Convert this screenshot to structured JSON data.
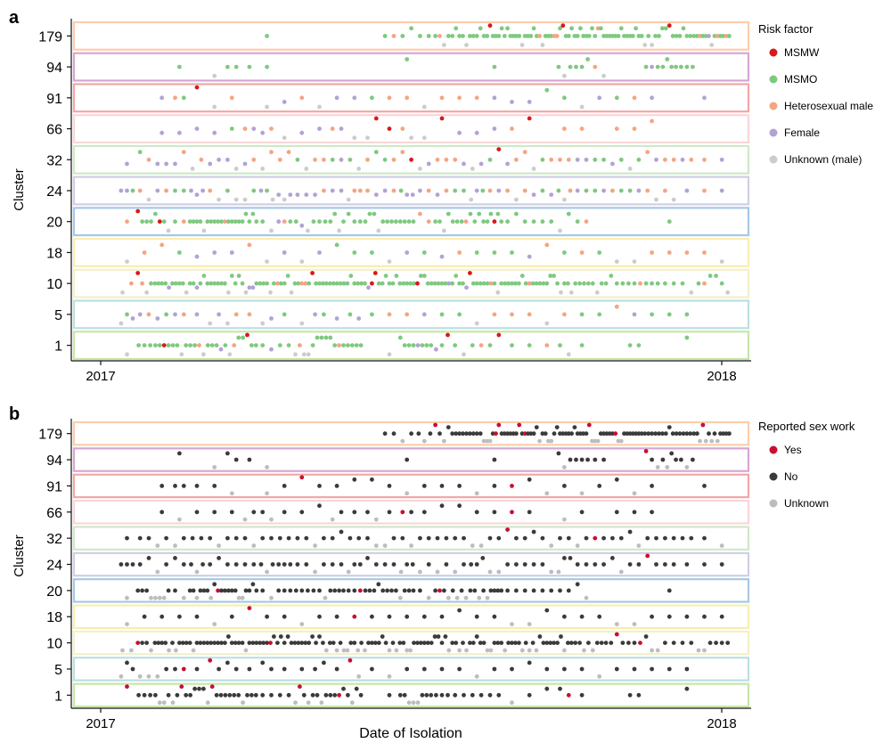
{
  "chart_data": [
    {
      "panel_label": "a",
      "type": "scatter",
      "xlabel": "",
      "ylabel": "Cluster",
      "x_ticks": [
        "2017",
        "2018"
      ],
      "xlim": [
        "2017-01-01",
        "2018-01-01"
      ],
      "categories": [
        "179",
        "94",
        "91",
        "66",
        "32",
        "24",
        "20",
        "18",
        "10",
        "5",
        "1"
      ],
      "legend_title": "Risk factor",
      "legend_position": "right",
      "series": [
        {
          "name": "MSMW",
          "color": "#d7191c"
        },
        {
          "name": "MSMO",
          "color": "#7fc97f"
        },
        {
          "name": "Heterosexual male",
          "color": "#f4a582"
        },
        {
          "name": "Female",
          "color": "#b2a2d6"
        },
        {
          "name": "Unknown (male)",
          "color": "#cccccc"
        }
      ],
      "density": {
        "179": [
          0,
          0,
          0,
          0,
          0,
          0,
          0,
          0,
          0,
          1,
          0,
          0,
          0,
          0,
          0,
          0,
          2,
          2,
          2,
          4,
          5,
          5,
          6,
          6,
          6,
          6,
          6,
          6,
          6,
          6,
          6,
          5,
          5,
          5,
          6,
          6
        ],
        "94": [
          0,
          0,
          0,
          0,
          1,
          0,
          1,
          2,
          1,
          1,
          0,
          0,
          0,
          0,
          0,
          0,
          0,
          1,
          0,
          0,
          0,
          0,
          1,
          0,
          0,
          0,
          3,
          3,
          2,
          0,
          0,
          3,
          4,
          3,
          0,
          0
        ],
        "91": [
          0,
          0,
          0,
          1,
          2,
          1,
          1,
          1,
          0,
          1,
          1,
          1,
          1,
          1,
          1,
          1,
          1,
          1,
          1,
          1,
          1,
          1,
          1,
          1,
          1,
          1,
          1,
          1,
          1,
          1,
          1,
          1,
          0,
          0,
          1,
          0
        ],
        "66": [
          0,
          0,
          0,
          1,
          1,
          1,
          1,
          1,
          2,
          2,
          1,
          1,
          1,
          2,
          1,
          2,
          1,
          2,
          1,
          1,
          1,
          1,
          1,
          1,
          1,
          0,
          1,
          1,
          0,
          1,
          1,
          1,
          0,
          0,
          0,
          0
        ],
        "32": [
          0,
          1,
          2,
          2,
          2,
          2,
          2,
          2,
          2,
          2,
          2,
          2,
          2,
          2,
          2,
          2,
          2,
          2,
          2,
          2,
          2,
          2,
          2,
          2,
          2,
          2,
          2,
          2,
          2,
          2,
          2,
          2,
          2,
          2,
          1,
          1
        ],
        "24": [
          0,
          3,
          2,
          2,
          2,
          3,
          2,
          2,
          2,
          3,
          3,
          2,
          2,
          2,
          3,
          2,
          2,
          3,
          2,
          2,
          2,
          3,
          2,
          2,
          2,
          2,
          3,
          2,
          2,
          2,
          2,
          2,
          2,
          1,
          1,
          1
        ],
        "20": [
          0,
          1,
          4,
          4,
          2,
          5,
          5,
          5,
          5,
          2,
          3,
          3,
          3,
          4,
          3,
          4,
          4,
          4,
          2,
          4,
          4,
          4,
          5,
          2,
          2,
          2,
          2,
          2,
          0,
          0,
          0,
          0,
          1,
          0,
          0,
          0
        ],
        "18": [
          0,
          1,
          1,
          1,
          1,
          1,
          1,
          1,
          1,
          1,
          1,
          1,
          1,
          1,
          1,
          1,
          1,
          1,
          1,
          1,
          1,
          1,
          1,
          1,
          1,
          1,
          1,
          1,
          1,
          1,
          1,
          1,
          1,
          1,
          1,
          1
        ],
        "10": [
          0,
          2,
          4,
          5,
          5,
          5,
          5,
          5,
          5,
          5,
          5,
          5,
          5,
          5,
          5,
          5,
          5,
          5,
          5,
          5,
          5,
          5,
          5,
          5,
          5,
          5,
          5,
          4,
          4,
          3,
          3,
          3,
          2,
          2,
          3,
          3
        ],
        "5": [
          0,
          3,
          2,
          2,
          2,
          1,
          2,
          2,
          1,
          2,
          1,
          1,
          2,
          1,
          2,
          1,
          1,
          1,
          1,
          1,
          1,
          1,
          1,
          1,
          1,
          1,
          1,
          1,
          1,
          1,
          1,
          1,
          1,
          1,
          0,
          0
        ],
        "1": [
          0,
          1,
          3,
          4,
          4,
          4,
          4,
          4,
          4,
          2,
          2,
          4,
          4,
          4,
          4,
          0,
          1,
          4,
          4,
          3,
          2,
          2,
          2,
          1,
          1,
          1,
          2,
          1,
          0,
          0,
          2,
          0,
          0,
          1,
          0,
          0
        ]
      }
    },
    {
      "panel_label": "b",
      "type": "scatter",
      "xlabel": "Date of Isolation",
      "ylabel": "Cluster",
      "x_ticks": [
        "2017",
        "2018"
      ],
      "xlim": [
        "2017-01-01",
        "2018-01-01"
      ],
      "categories": [
        "179",
        "94",
        "91",
        "66",
        "32",
        "24",
        "20",
        "18",
        "10",
        "5",
        "1"
      ],
      "legend_title": "Reported sex work",
      "legend_position": "right",
      "series": [
        {
          "name": "Yes",
          "color": "#c8102e"
        },
        {
          "name": "No",
          "color": "#3a3a3a"
        },
        {
          "name": "Unknown",
          "color": "#bdbdbd"
        }
      ],
      "density": {
        "179": [
          0,
          0,
          0,
          0,
          0,
          0,
          0,
          0,
          0,
          0,
          0,
          0,
          0,
          0,
          0,
          0,
          2,
          2,
          3,
          4,
          5,
          5,
          6,
          6,
          6,
          6,
          6,
          6,
          6,
          6,
          6,
          5,
          5,
          5,
          6,
          6
        ],
        "94": [
          0,
          0,
          0,
          0,
          1,
          0,
          1,
          2,
          1,
          1,
          0,
          0,
          0,
          0,
          0,
          0,
          0,
          1,
          0,
          0,
          0,
          0,
          1,
          0,
          0,
          0,
          3,
          3,
          2,
          0,
          0,
          3,
          4,
          3,
          0,
          0
        ],
        "91": [
          0,
          0,
          0,
          1,
          2,
          1,
          1,
          1,
          0,
          1,
          1,
          1,
          1,
          1,
          1,
          1,
          1,
          1,
          1,
          1,
          1,
          1,
          1,
          1,
          1,
          1,
          1,
          1,
          1,
          1,
          1,
          1,
          0,
          0,
          1,
          0
        ],
        "66": [
          0,
          0,
          0,
          1,
          1,
          1,
          1,
          1,
          2,
          2,
          1,
          1,
          1,
          2,
          1,
          2,
          1,
          2,
          1,
          1,
          1,
          1,
          1,
          1,
          1,
          0,
          1,
          1,
          0,
          1,
          1,
          1,
          0,
          0,
          0,
          0
        ],
        "32": [
          0,
          1,
          2,
          2,
          2,
          2,
          2,
          2,
          2,
          2,
          2,
          2,
          2,
          2,
          2,
          2,
          2,
          2,
          2,
          2,
          2,
          2,
          2,
          2,
          2,
          2,
          2,
          2,
          2,
          2,
          2,
          2,
          2,
          2,
          1,
          1
        ],
        "24": [
          0,
          3,
          2,
          2,
          2,
          3,
          2,
          2,
          2,
          3,
          3,
          2,
          2,
          2,
          3,
          2,
          2,
          3,
          2,
          2,
          2,
          3,
          2,
          2,
          2,
          2,
          3,
          2,
          2,
          2,
          2,
          2,
          2,
          1,
          1,
          1
        ],
        "20": [
          0,
          1,
          4,
          4,
          2,
          5,
          5,
          5,
          5,
          2,
          3,
          3,
          3,
          4,
          3,
          4,
          4,
          4,
          2,
          4,
          4,
          4,
          5,
          2,
          2,
          2,
          2,
          2,
          0,
          0,
          0,
          0,
          1,
          0,
          0,
          0
        ],
        "18": [
          0,
          1,
          1,
          1,
          1,
          1,
          1,
          1,
          1,
          1,
          1,
          1,
          1,
          1,
          1,
          1,
          1,
          1,
          1,
          1,
          1,
          1,
          1,
          1,
          1,
          1,
          1,
          1,
          1,
          1,
          1,
          1,
          1,
          1,
          1,
          1
        ],
        "10": [
          0,
          2,
          4,
          5,
          5,
          5,
          5,
          5,
          5,
          5,
          5,
          5,
          5,
          5,
          5,
          5,
          5,
          5,
          5,
          5,
          5,
          5,
          5,
          5,
          5,
          5,
          5,
          4,
          4,
          3,
          3,
          3,
          2,
          2,
          3,
          3
        ],
        "5": [
          0,
          3,
          2,
          2,
          2,
          1,
          2,
          2,
          1,
          2,
          1,
          1,
          2,
          1,
          2,
          1,
          1,
          1,
          1,
          1,
          1,
          1,
          1,
          1,
          1,
          1,
          1,
          1,
          1,
          1,
          1,
          1,
          1,
          1,
          0,
          0
        ],
        "1": [
          0,
          1,
          3,
          4,
          4,
          4,
          4,
          4,
          4,
          2,
          2,
          4,
          4,
          4,
          4,
          0,
          1,
          4,
          4,
          3,
          2,
          2,
          2,
          1,
          1,
          1,
          2,
          1,
          0,
          0,
          2,
          0,
          0,
          1,
          0,
          0
        ]
      }
    }
  ],
  "cluster_colors": {
    "179": "#fdcdac",
    "94": "#d6a6d6",
    "91": "#f4a6a6",
    "66": "#f9d6d9",
    "32": "#cfe8c8",
    "24": "#cfcfe6",
    "20": "#a6c8e6",
    "18": "#f8eeb0",
    "10": "#f3f0c8",
    "5": "#b9e0e3",
    "1": "#c8e6a6"
  }
}
